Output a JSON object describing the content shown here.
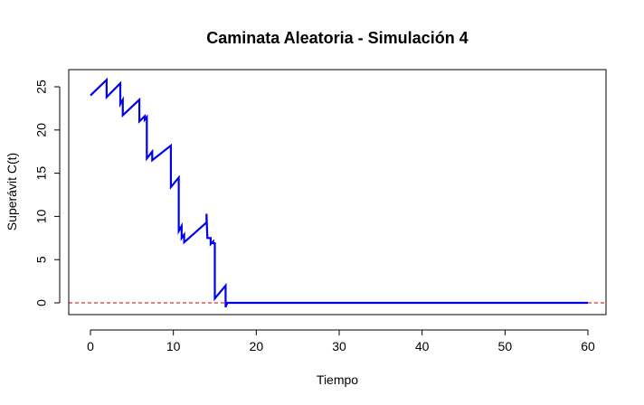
{
  "chart_data": {
    "type": "line",
    "title": "Caminata Aleatoria - Simulación 4",
    "xlabel": "Tiempo",
    "ylabel": "Superávit C(t)",
    "xlim": [
      0,
      60
    ],
    "ylim": [
      0,
      25
    ],
    "x_ticks": [
      0,
      10,
      20,
      30,
      40,
      50,
      60
    ],
    "y_ticks": [
      0,
      5,
      10,
      15,
      20,
      25
    ],
    "grid": false,
    "legend": "none",
    "series": [
      {
        "color": "#0000ee",
        "points": [
          [
            0.0,
            24.0
          ],
          [
            1.95,
            25.8
          ],
          [
            1.95,
            23.8
          ],
          [
            3.6,
            25.4
          ],
          [
            3.6,
            23.0
          ],
          [
            3.9,
            23.5
          ],
          [
            3.9,
            21.7
          ],
          [
            5.9,
            23.5
          ],
          [
            5.9,
            21.0
          ],
          [
            6.55,
            21.6
          ],
          [
            6.55,
            21.2
          ],
          [
            6.8,
            21.5
          ],
          [
            6.8,
            16.7
          ],
          [
            7.45,
            17.5
          ],
          [
            7.45,
            16.5
          ],
          [
            9.7,
            18.2
          ],
          [
            9.7,
            13.4
          ],
          [
            10.65,
            14.5
          ],
          [
            10.65,
            8.3
          ],
          [
            11.0,
            8.9
          ],
          [
            11.0,
            7.5
          ],
          [
            11.3,
            7.9
          ],
          [
            11.3,
            7.0
          ],
          [
            14.0,
            9.3
          ],
          [
            14.0,
            10.3
          ],
          [
            14.1,
            7.5
          ],
          [
            14.5,
            7.5
          ],
          [
            14.5,
            6.8
          ],
          [
            14.8,
            7.1
          ],
          [
            14.8,
            6.9
          ],
          [
            15.0,
            6.9
          ],
          [
            15.0,
            0.5
          ],
          [
            16.3,
            2.0
          ],
          [
            16.3,
            -0.5
          ],
          [
            16.5,
            0.0
          ],
          [
            60.0,
            0.0
          ]
        ]
      }
    ],
    "reference_line": {
      "y": 0,
      "color": "#cc0000",
      "style": "dashed"
    }
  }
}
